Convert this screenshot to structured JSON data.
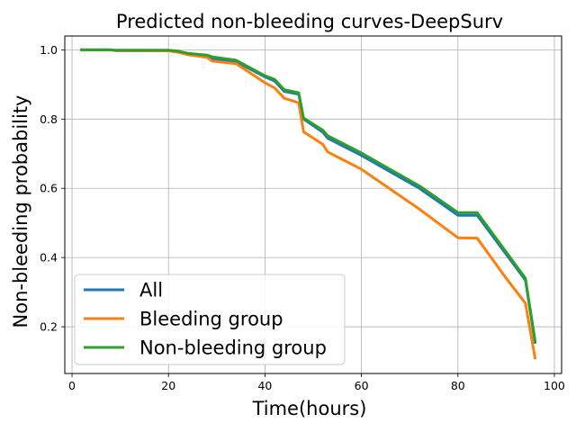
{
  "chart_data": {
    "type": "line",
    "title": "Predicted non-bleeding curves-DeepSurv",
    "xlabel": "Time(hours)",
    "ylabel": "Non-bleeding probability",
    "xlim": [
      -1.5,
      101.5
    ],
    "ylim": [
      0.065,
      1.04
    ],
    "xticks": [
      0,
      20,
      40,
      60,
      80,
      100
    ],
    "yticks": [
      0.2,
      0.4,
      0.6,
      0.8,
      1.0
    ],
    "xtick_labels": [
      "0",
      "20",
      "40",
      "60",
      "80",
      "100"
    ],
    "ytick_labels": [
      "0.2",
      "0.4",
      "0.6",
      "0.8",
      "1.0"
    ],
    "grid": true,
    "legend_position": "bottom-left",
    "series": [
      {
        "name": "All",
        "color": "#1f77b4",
        "x": [
          2,
          8,
          9,
          20,
          22,
          24,
          28,
          29,
          34,
          40,
          42,
          44,
          47,
          48,
          52,
          53,
          60,
          72,
          80,
          84,
          94,
          96
        ],
        "y": [
          1.0,
          1.0,
          0.998,
          0.998,
          0.995,
          0.988,
          0.982,
          0.975,
          0.966,
          0.922,
          0.91,
          0.88,
          0.872,
          0.8,
          0.762,
          0.745,
          0.695,
          0.6,
          0.522,
          0.522,
          0.335,
          0.155
        ]
      },
      {
        "name": "Bleeding group",
        "color": "#ff7f0e",
        "x": [
          2,
          8,
          9,
          20,
          22,
          24,
          28,
          29,
          34,
          40,
          42,
          44,
          47,
          48,
          52,
          53,
          60,
          72,
          80,
          84,
          90,
          94,
          96
        ],
        "y": [
          1.0,
          1.0,
          0.998,
          0.997,
          0.993,
          0.986,
          0.978,
          0.968,
          0.96,
          0.905,
          0.89,
          0.86,
          0.847,
          0.763,
          0.727,
          0.705,
          0.655,
          0.54,
          0.457,
          0.456,
          0.34,
          0.268,
          0.11
        ]
      },
      {
        "name": "Non-bleeding group",
        "color": "#2ca02c",
        "x": [
          2,
          8,
          9,
          20,
          22,
          24,
          28,
          29,
          34,
          40,
          42,
          44,
          47,
          48,
          52,
          53,
          60,
          72,
          80,
          84,
          94,
          96
        ],
        "y": [
          1.0,
          1.0,
          0.999,
          0.999,
          0.996,
          0.99,
          0.985,
          0.98,
          0.97,
          0.925,
          0.915,
          0.885,
          0.876,
          0.803,
          0.768,
          0.752,
          0.702,
          0.607,
          0.53,
          0.53,
          0.34,
          0.16
        ]
      }
    ]
  }
}
